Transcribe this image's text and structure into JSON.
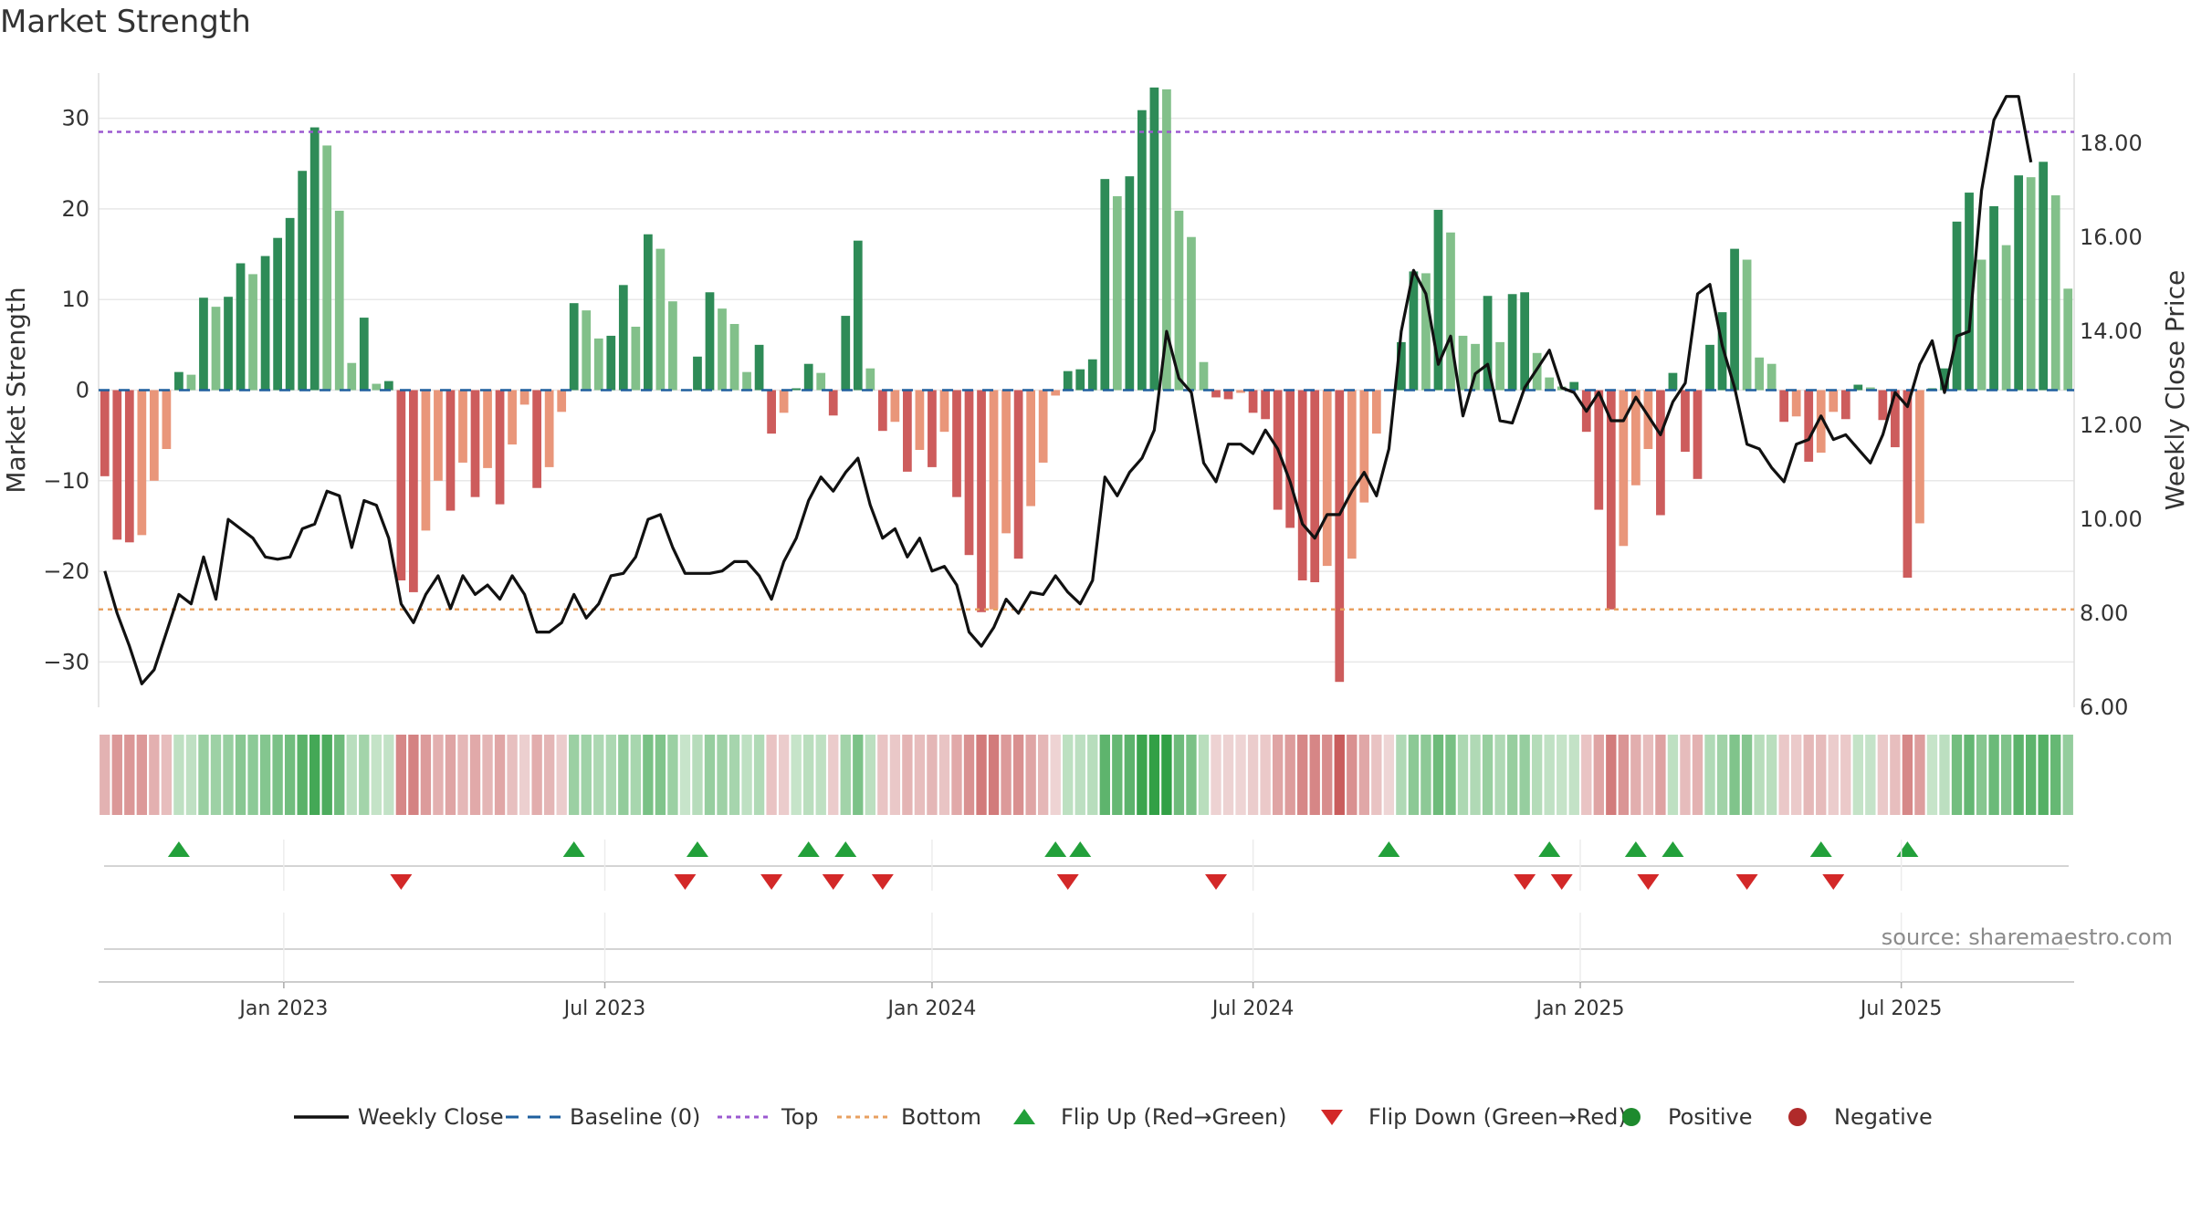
{
  "chart_data": {
    "type": "bar",
    "title": "Market Strength",
    "ylabel": "Market Strength",
    "y2label": "Weekly Close Price",
    "ylim": [
      -35,
      35
    ],
    "y2lim": [
      6.0,
      19.5
    ],
    "yticks": [
      -30,
      -20,
      -10,
      0,
      10,
      20,
      30
    ],
    "yticklabels": [
      "−30",
      "−20",
      "−10",
      "0",
      "10",
      "20",
      "30"
    ],
    "y2ticks": [
      6,
      8,
      10,
      12,
      14,
      16,
      18
    ],
    "y2ticklabels": [
      "6.00",
      "8.00",
      "10.00",
      "12.00",
      "14.00",
      "16.00",
      "18.00"
    ],
    "xticks": [
      {
        "label": "Jan 2023",
        "week": 15
      },
      {
        "label": "Jul 2023",
        "week": 41
      },
      {
        "label": "Jan 2024",
        "week": 67.5
      },
      {
        "label": "Jul 2024",
        "week": 93.5
      },
      {
        "label": "Jan 2025",
        "week": 120
      },
      {
        "label": "Jul 2025",
        "week": 146
      }
    ],
    "top_line": 28.5,
    "bottom_line": -24.2,
    "strength": [
      -9.5,
      -16.5,
      -16.8,
      -16,
      -10,
      -6.5,
      2,
      1.7,
      10.2,
      9.2,
      10.3,
      14,
      12.8,
      14.8,
      16.8,
      19,
      24.2,
      29,
      27,
      19.8,
      3,
      8,
      0.7,
      1,
      -21,
      -22.3,
      -15.5,
      -10,
      -13.3,
      -8,
      -11.8,
      -8.6,
      -12.6,
      -6,
      -1.6,
      -10.8,
      -8.5,
      -2.4,
      9.6,
      8.8,
      5.7,
      6,
      11.6,
      7,
      17.2,
      15.6,
      9.8,
      0,
      3.7,
      10.8,
      9,
      7.3,
      2,
      5,
      -4.8,
      -2.5,
      0.2,
      2.9,
      1.9,
      -2.8,
      8.2,
      16.5,
      2.4,
      -4.5,
      -3.5,
      -9,
      -6.6,
      -8.5,
      -4.6,
      -11.8,
      -18.2,
      -24.5,
      -24.2,
      -15.8,
      -18.6,
      -12.8,
      -8,
      -0.6,
      2.1,
      2.3,
      3.4,
      23.3,
      21.4,
      23.6,
      30.9,
      33.4,
      33.2,
      19.8,
      16.9,
      3.1,
      -0.8,
      -1,
      -0.3,
      -2.5,
      -3.2,
      -13.2,
      -15.2,
      -21,
      -21.2,
      -19.4,
      -32.2,
      -18.6,
      -12.4,
      -4.8,
      -0.1,
      5.3,
      13.1,
      12.9,
      19.9,
      17.4,
      6,
      5.1,
      10.4,
      5.3,
      10.6,
      10.8,
      4.1,
      1.4,
      0.4,
      0.9,
      -4.6,
      -13.2,
      -24.2,
      -17.2,
      -10.5,
      -6.5,
      -13.8,
      1.9,
      -6.8,
      -9.8,
      5,
      8.6,
      15.6,
      14.4,
      3.6,
      2.9,
      -3.5,
      -2.9,
      -7.9,
      -6.9,
      -2.4,
      -3.2,
      0.6,
      0.3,
      -3.3,
      -6.3,
      -20.7,
      -14.7,
      0.2,
      2.4,
      18.6,
      21.8,
      14.4,
      20.3,
      16,
      23.7,
      23.5,
      25.2,
      21.5,
      11.2
    ],
    "close": [
      8.9,
      8,
      7.3,
      6.5,
      6.8,
      7.6,
      8.4,
      8.2,
      9.2,
      8.3,
      10,
      9.8,
      9.6,
      9.2,
      9.15,
      9.2,
      9.8,
      9.9,
      10.6,
      10.5,
      9.4,
      10.4,
      10.3,
      9.6,
      8.2,
      7.8,
      8.4,
      8.8,
      8.1,
      8.8,
      8.4,
      8.6,
      8.3,
      8.8,
      8.4,
      7.6,
      7.6,
      7.8,
      8.4,
      7.9,
      8.2,
      8.8,
      8.85,
      9.2,
      10,
      10.1,
      9.4,
      8.85,
      8.85,
      8.85,
      8.9,
      9.1,
      9.1,
      8.8,
      8.3,
      9.1,
      9.6,
      10.4,
      10.9,
      10.6,
      11,
      11.3,
      10.3,
      9.6,
      9.8,
      9.2,
      9.6,
      8.9,
      9,
      8.6,
      7.6,
      7.3,
      7.7,
      8.3,
      8,
      8.45,
      8.4,
      8.8,
      8.45,
      8.2,
      8.7,
      10.9,
      10.5,
      11,
      11.3,
      11.9,
      14,
      13,
      12.7,
      11.2,
      10.8,
      11.6,
      11.6,
      11.4,
      11.9,
      11.5,
      10.8,
      9.9,
      9.6,
      10.1,
      10.1,
      10.6,
      11,
      10.5,
      11.5,
      14,
      15.3,
      14.8,
      13.3,
      13.9,
      12.2,
      13.1,
      13.3,
      12.1,
      12.05,
      12.8,
      13.2,
      13.6,
      12.8,
      12.7,
      12.3,
      12.7,
      12.1,
      12.1,
      12.6,
      12.2,
      11.8,
      12.5,
      12.9,
      14.8,
      15,
      13.7,
      12.8,
      11.6,
      11.5,
      11.1,
      10.8,
      11.6,
      11.7,
      12.2,
      11.7,
      11.8,
      11.5,
      11.2,
      11.8,
      12.7,
      12.4,
      13.3,
      13.8,
      12.7,
      13.9,
      14,
      17,
      18.5,
      19,
      19,
      17.6
    ],
    "color_strip": [
      -9.5,
      -16.5,
      -16.8,
      -16,
      -10,
      -6.5,
      2,
      1.7,
      10.2,
      9.2,
      10.3,
      14,
      12.8,
      14.8,
      16.8,
      19,
      24.2,
      29,
      27,
      19.8,
      3,
      8,
      0.7,
      1,
      -21,
      -22.3,
      -15.5,
      -10,
      -13.3,
      -8,
      -11.8,
      -8.6,
      -12.6,
      -6,
      -1.6,
      -10.8,
      -8.5,
      -2.4,
      9.6,
      8.8,
      5.7,
      6,
      11.6,
      7,
      17.2,
      15.6,
      9.8,
      0,
      3.7,
      10.8,
      9,
      7.3,
      2,
      5,
      -4.8,
      -2.5,
      0.2,
      2.9,
      1.9,
      -2.8,
      8.2,
      16.5,
      2.4,
      -4.5,
      -3.5,
      -9,
      -6.6,
      -8.5,
      -4.6,
      -11.8,
      -18.2,
      -24.5,
      -24.2,
      -15.8,
      -18.6,
      -12.8,
      -8,
      -0.6,
      2.1,
      2.3,
      3.4,
      23.3,
      21.4,
      23.6,
      30.9,
      33.4,
      33.2,
      19.8,
      16.9,
      3.1,
      -0.8,
      -1,
      -0.3,
      -2.5,
      -3.2,
      -13.2,
      -15.2,
      -21,
      -21.2,
      -19.4,
      -32.2,
      -18.6,
      -12.4,
      -4.8,
      -0.1,
      5.3,
      13.1,
      12.9,
      19.9,
      17.4,
      6,
      5.1,
      10.4,
      5.3,
      10.6,
      10.8,
      4.1,
      1.4,
      0.4,
      0.9,
      -4.6,
      -13.2,
      -24.2,
      -17.2,
      -10.5,
      -6.5,
      -13.8,
      1.9,
      -6.8,
      -9.8,
      5,
      8.6,
      15.6,
      14.4,
      3.6,
      2.9,
      -3.5,
      -2.9,
      -7.9,
      -6.9,
      -2.4,
      -3.2,
      0.6,
      0.3,
      -3.3,
      -6.3,
      -20.7,
      -14.7,
      0.2,
      2.4,
      18.6,
      21.8,
      14.4,
      20.3,
      16,
      23.7,
      23.5,
      25.2,
      21.5,
      11.2
    ],
    "flip_up_weeks": [
      6.5,
      38.5,
      48.5,
      57.5,
      60.5,
      77.5,
      79.5,
      104.5,
      117.5,
      124.5,
      127.5,
      139.5,
      146.5
    ],
    "flip_down_weeks": [
      24.5,
      47.5,
      54.5,
      59.5,
      63.5,
      78.5,
      90.5,
      115.5,
      118.5,
      125.5,
      133.5,
      140.5
    ],
    "legend": [
      {
        "label": "Weekly Close",
        "kind": "line",
        "color": "#111111"
      },
      {
        "label": "Baseline (0)",
        "kind": "dash",
        "color": "#1f5f9e"
      },
      {
        "label": "Top",
        "kind": "dot",
        "color": "#9b59d0"
      },
      {
        "label": "Bottom",
        "kind": "dot",
        "color": "#e8a060"
      },
      {
        "label": "Flip Up (Red→Green)",
        "kind": "tri-up",
        "color": "#22a03a"
      },
      {
        "label": "Flip Down (Green→Red)",
        "kind": "tri-down",
        "color": "#d32828"
      },
      {
        "label": "Positive",
        "kind": "dot-circle",
        "color": "#1e8a2e"
      },
      {
        "label": "Negative",
        "kind": "dot-circle",
        "color": "#b02a2a"
      }
    ],
    "colors": {
      "pos_dark": "#2e8b57",
      "pos_light": "#82c08a",
      "neg_dark": "#cd5c5c",
      "neg_light": "#e9967a",
      "grid": "#e8e8e8",
      "axis_text": "#333333"
    }
  },
  "source": "source: sharemaestro.com"
}
